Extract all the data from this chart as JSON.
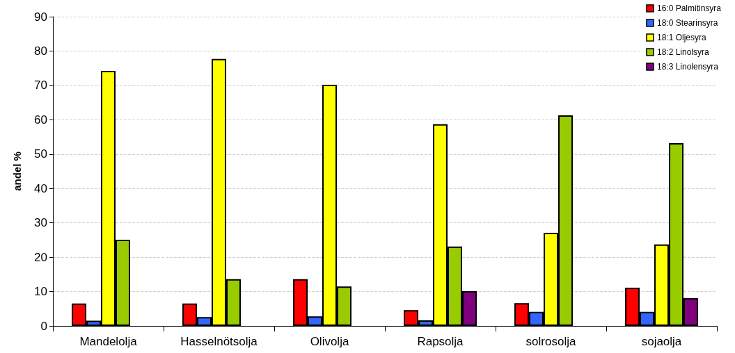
{
  "chart_data": {
    "type": "bar",
    "ylabel": "andel %",
    "categories": [
      "Mandelolja",
      "Hasselnötsolja",
      "Olivolja",
      "Rapsolja",
      "solrosolja",
      "sojaolja"
    ],
    "series": [
      {
        "name": "16:0 Palmitinsyra",
        "color": "#ff0000",
        "values": [
          6.5,
          6.5,
          13.6,
          4.6,
          6.6,
          11.1
        ]
      },
      {
        "name": "18:0 Stearinsyra",
        "color": "#3366ff",
        "values": [
          1.5,
          2.6,
          2.8,
          1.6,
          4.1,
          4.1
        ]
      },
      {
        "name": "18:1 Oljesyra",
        "color": "#ffff00",
        "values": [
          74.2,
          77.7,
          70.2,
          58.7,
          27.1,
          23.7
        ]
      },
      {
        "name": "18:2 Linolsyra",
        "color": "#99cc00",
        "values": [
          25.1,
          13.6,
          11.5,
          23.1,
          61.3,
          53.2
        ]
      },
      {
        "name": "18:3 Linolensyra",
        "color": "#800080",
        "values": [
          null,
          null,
          null,
          10.1,
          null,
          8.1
        ]
      }
    ],
    "ylim": [
      0,
      90
    ],
    "yticks": [
      0,
      10,
      20,
      30,
      40,
      50,
      60,
      70,
      80,
      90
    ],
    "grid": "y",
    "legend": "top right"
  }
}
